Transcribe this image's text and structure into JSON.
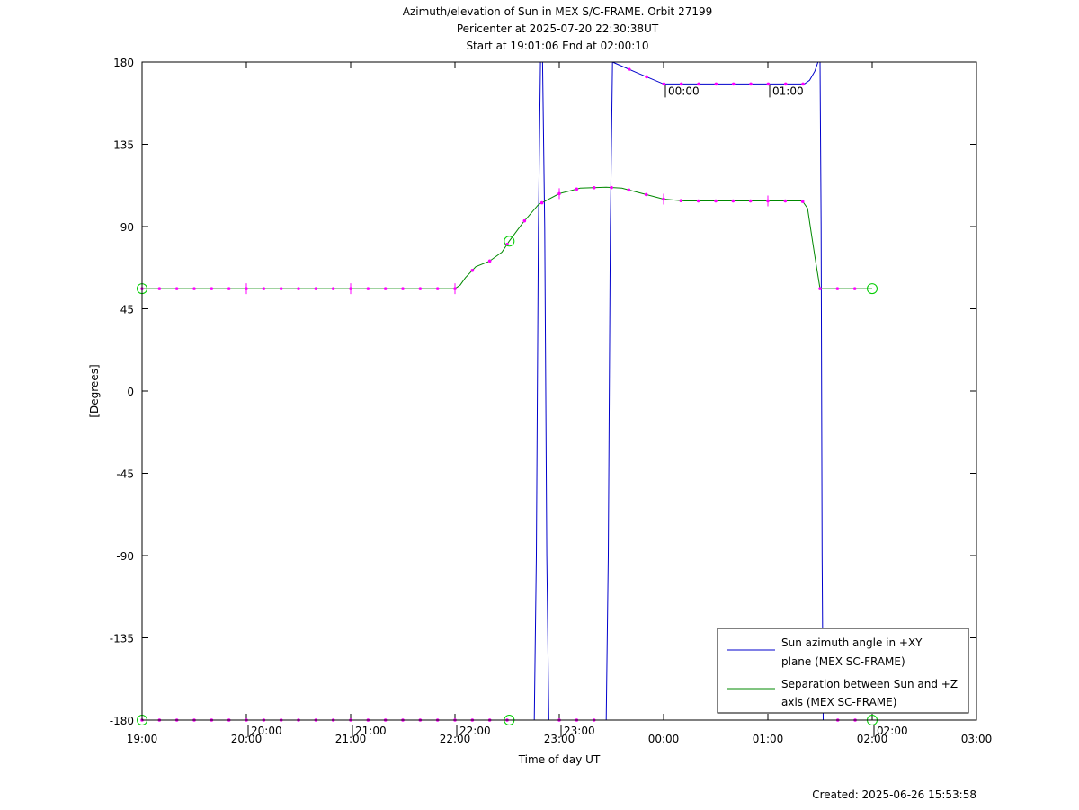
{
  "title_lines": [
    "Azimuth/elevation of Sun in MEX S/C-FRAME.  Orbit 27199",
    "Pericenter at 2025-07-20 22:30:38UT",
    "Start at 19:01:06 End at 02:00:10"
  ],
  "footer": "Created: 2025-06-26 15:53:58",
  "colors": {
    "azimuth": "#0000cc",
    "separation": "#008800",
    "markers": "#ff00ff",
    "circles": "#00cc00"
  },
  "chart_data": {
    "type": "line",
    "xlabel": "Time of day UT",
    "ylabel": "[Degrees]",
    "x_unit": "hours since 19:00 UT",
    "xlim": [
      0,
      8
    ],
    "ylim": [
      -180,
      180
    ],
    "xticks": [
      {
        "v": 0,
        "label": "19:00"
      },
      {
        "v": 1,
        "label": "20:00"
      },
      {
        "v": 2,
        "label": "21:00"
      },
      {
        "v": 3,
        "label": "22:00"
      },
      {
        "v": 4,
        "label": "23:00"
      },
      {
        "v": 5,
        "label": "00:00"
      },
      {
        "v": 6,
        "label": "01:00"
      },
      {
        "v": 7,
        "label": "02:00"
      },
      {
        "v": 8,
        "label": "03:00"
      }
    ],
    "yticks": [
      {
        "v": 180,
        "label": "180"
      },
      {
        "v": 135,
        "label": "135"
      },
      {
        "v": 90,
        "label": "90"
      },
      {
        "v": 45,
        "label": "45"
      },
      {
        "v": 0,
        "label": "0"
      },
      {
        "v": -45,
        "label": "-45"
      },
      {
        "v": -90,
        "label": "-90"
      },
      {
        "v": -135,
        "label": "-135"
      },
      {
        "v": -180,
        "label": "-180"
      }
    ],
    "hour_markers": [
      {
        "x": 1,
        "y": -180,
        "label": "20:00"
      },
      {
        "x": 2,
        "y": -180,
        "label": "21:00"
      },
      {
        "x": 3,
        "y": -180,
        "label": "22:00"
      },
      {
        "x": 4,
        "y": -180,
        "label": "23:00"
      },
      {
        "x": 5,
        "y": 170,
        "label": "00:00"
      },
      {
        "x": 6,
        "y": 170,
        "label": "01:00"
      },
      {
        "x": 7,
        "y": -180,
        "label": "02:00"
      }
    ],
    "circle_markers": [
      {
        "x": 0.0,
        "y": 56
      },
      {
        "x": 0.0,
        "y": -180
      },
      {
        "x": 3.52,
        "y": 82
      },
      {
        "x": 3.52,
        "y": -180
      },
      {
        "x": 7.0,
        "y": 56
      },
      {
        "x": 7.0,
        "y": -180
      }
    ],
    "series": [
      {
        "name": "Sun azimuth angle in +XY plane (MEX SC-FRAME)",
        "segments": [
          [
            [
              0.0,
              -180
            ],
            [
              3.76,
              -180
            ],
            [
              3.78,
              -90
            ],
            [
              3.8,
              90
            ],
            [
              3.82,
              180
            ]
          ],
          [
            [
              3.84,
              180
            ],
            [
              3.86,
              90
            ],
            [
              3.88,
              -90
            ],
            [
              3.9,
              -180
            ]
          ],
          [
            [
              3.92,
              -180
            ],
            [
              4.45,
              -180
            ],
            [
              4.47,
              -90
            ],
            [
              4.49,
              90
            ],
            [
              4.51,
              180
            ]
          ],
          [
            [
              4.51,
              180
            ],
            [
              4.75,
              174
            ],
            [
              5.0,
              168
            ],
            [
              5.5,
              168
            ],
            [
              6.0,
              168
            ],
            [
              6.35,
              168
            ],
            [
              6.4,
              170
            ],
            [
              6.45,
              175
            ],
            [
              6.48,
              180
            ]
          ],
          [
            [
              6.5,
              180
            ],
            [
              6.51,
              90
            ],
            [
              6.52,
              -90
            ],
            [
              6.53,
              -180
            ],
            [
              7.0,
              -180
            ]
          ]
        ]
      },
      {
        "name": "Separation between Sun and +Z axis (MEX SC-FRAME)",
        "segments": [
          [
            [
              0.0,
              56
            ],
            [
              2.0,
              56
            ],
            [
              3.0,
              56
            ],
            [
              3.05,
              58
            ],
            [
              3.1,
              62
            ],
            [
              3.2,
              68
            ],
            [
              3.33,
              71
            ],
            [
              3.45,
              76
            ],
            [
              3.52,
              82
            ],
            [
              3.65,
              92
            ],
            [
              3.8,
              102
            ],
            [
              4.0,
              108
            ],
            [
              4.2,
              111
            ],
            [
              4.45,
              111.5
            ],
            [
              4.6,
              111
            ],
            [
              4.8,
              108
            ],
            [
              5.0,
              105
            ],
            [
              5.2,
              104
            ],
            [
              5.6,
              104
            ],
            [
              6.0,
              104
            ],
            [
              6.33,
              104
            ],
            [
              6.38,
              100
            ],
            [
              6.42,
              85
            ],
            [
              6.46,
              70
            ],
            [
              6.5,
              56
            ],
            [
              6.7,
              56
            ],
            [
              7.0,
              56
            ]
          ]
        ]
      }
    ]
  }
}
